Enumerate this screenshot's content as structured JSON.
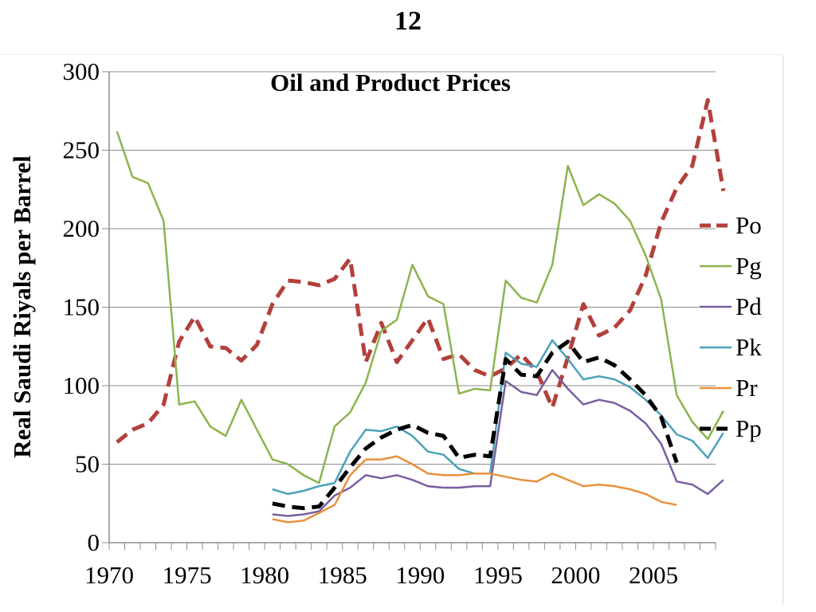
{
  "page": {
    "number": "12"
  },
  "chart_data": {
    "type": "line",
    "title": "Oil and Product Prices",
    "xlabel": "",
    "ylabel": "Real Saudi Riyals per Barrel",
    "xlim": [
      1970,
      2009
    ],
    "ylim": [
      0,
      300
    ],
    "x_ticks": [
      1970,
      1975,
      1980,
      1985,
      1990,
      1995,
      2000,
      2005
    ],
    "y_ticks": [
      0,
      50,
      100,
      150,
      200,
      250,
      300
    ],
    "grid": "horizontal",
    "legend_position": "right",
    "series": [
      {
        "name": "Po",
        "color": "#b3403b",
        "dash": "dashed",
        "width": 5,
        "points": [
          [
            1970.5,
            64
          ],
          [
            1971.5,
            72
          ],
          [
            1972.5,
            76
          ],
          [
            1973.5,
            88
          ],
          [
            1974.5,
            128
          ],
          [
            1975.5,
            144
          ],
          [
            1976.5,
            125
          ],
          [
            1977.5,
            124
          ],
          [
            1978.5,
            116
          ],
          [
            1979.5,
            126
          ],
          [
            1980.5,
            152
          ],
          [
            1981.5,
            167
          ],
          [
            1982.5,
            166
          ],
          [
            1983.5,
            164
          ],
          [
            1984.5,
            168
          ],
          [
            1985.5,
            181
          ],
          [
            1986.5,
            115
          ],
          [
            1987.5,
            140
          ],
          [
            1988.5,
            115
          ],
          [
            1989.5,
            129
          ],
          [
            1990.5,
            143
          ],
          [
            1991.5,
            117
          ],
          [
            1992.5,
            120
          ],
          [
            1993.5,
            110
          ],
          [
            1994.5,
            106
          ],
          [
            1995.5,
            111
          ],
          [
            1996.5,
            120
          ],
          [
            1997.5,
            109
          ],
          [
            1998.5,
            86
          ],
          [
            1999.5,
            118
          ],
          [
            2000.5,
            152
          ],
          [
            2001.5,
            132
          ],
          [
            2002.5,
            137
          ],
          [
            2003.5,
            148
          ],
          [
            2004.5,
            170
          ],
          [
            2005.5,
            204
          ],
          [
            2006.5,
            226
          ],
          [
            2007.5,
            240
          ],
          [
            2008.5,
            282
          ],
          [
            2009.5,
            224
          ]
        ]
      },
      {
        "name": "Pg",
        "color": "#8cb44f",
        "dash": "solid",
        "width": 2.5,
        "points": [
          [
            1970.5,
            262
          ],
          [
            1971.5,
            233
          ],
          [
            1972.5,
            229
          ],
          [
            1973.5,
            205
          ],
          [
            1974.5,
            88
          ],
          [
            1975.5,
            90
          ],
          [
            1976.5,
            74
          ],
          [
            1977.5,
            68
          ],
          [
            1978.5,
            91
          ],
          [
            1979.5,
            72
          ],
          [
            1980.5,
            53
          ],
          [
            1981.5,
            50
          ],
          [
            1982.5,
            43
          ],
          [
            1983.5,
            38
          ],
          [
            1984.5,
            74
          ],
          [
            1985.5,
            83
          ],
          [
            1986.5,
            102
          ],
          [
            1987.5,
            135
          ],
          [
            1988.5,
            142
          ],
          [
            1989.5,
            177
          ],
          [
            1990.5,
            157
          ],
          [
            1991.5,
            152
          ],
          [
            1992.5,
            95
          ],
          [
            1993.5,
            98
          ],
          [
            1994.5,
            97
          ],
          [
            1995.5,
            167
          ],
          [
            1996.5,
            156
          ],
          [
            1997.5,
            153
          ],
          [
            1998.5,
            177
          ],
          [
            1999.5,
            240
          ],
          [
            2000.5,
            215
          ],
          [
            2001.5,
            222
          ],
          [
            2002.5,
            216
          ],
          [
            2003.5,
            205
          ],
          [
            2004.5,
            183
          ],
          [
            2005.5,
            155
          ],
          [
            2006.5,
            94
          ],
          [
            2007.5,
            77
          ],
          [
            2008.5,
            66
          ],
          [
            2009.5,
            84
          ]
        ]
      },
      {
        "name": "Pd",
        "color": "#7a5ea0",
        "dash": "solid",
        "width": 2.5,
        "points": [
          [
            1980.5,
            18
          ],
          [
            1981.5,
            17
          ],
          [
            1982.5,
            18
          ],
          [
            1983.5,
            20
          ],
          [
            1984.5,
            30
          ],
          [
            1985.5,
            35
          ],
          [
            1986.5,
            43
          ],
          [
            1987.5,
            41
          ],
          [
            1988.5,
            43
          ],
          [
            1989.5,
            40
          ],
          [
            1990.5,
            36
          ],
          [
            1991.5,
            35
          ],
          [
            1992.5,
            35
          ],
          [
            1993.5,
            36
          ],
          [
            1994.5,
            36
          ],
          [
            1995.5,
            103
          ],
          [
            1996.5,
            96
          ],
          [
            1997.5,
            94
          ],
          [
            1998.5,
            110
          ],
          [
            1999.5,
            98
          ],
          [
            2000.5,
            88
          ],
          [
            2001.5,
            91
          ],
          [
            2002.5,
            89
          ],
          [
            2003.5,
            84
          ],
          [
            2004.5,
            76
          ],
          [
            2005.5,
            63
          ],
          [
            2006.5,
            39
          ],
          [
            2007.5,
            37
          ],
          [
            2008.5,
            31
          ],
          [
            2009.5,
            40
          ]
        ]
      },
      {
        "name": "Pk",
        "color": "#4aa2b9",
        "dash": "solid",
        "width": 2.5,
        "points": [
          [
            1980.5,
            34
          ],
          [
            1981.5,
            31
          ],
          [
            1982.5,
            33
          ],
          [
            1983.5,
            36
          ],
          [
            1984.5,
            38
          ],
          [
            1985.5,
            58
          ],
          [
            1986.5,
            72
          ],
          [
            1987.5,
            71
          ],
          [
            1988.5,
            74
          ],
          [
            1989.5,
            68
          ],
          [
            1990.5,
            58
          ],
          [
            1991.5,
            56
          ],
          [
            1992.5,
            47
          ],
          [
            1993.5,
            44
          ],
          [
            1994.5,
            44
          ],
          [
            1995.5,
            121
          ],
          [
            1996.5,
            114
          ],
          [
            1997.5,
            112
          ],
          [
            1998.5,
            129
          ],
          [
            1999.5,
            117
          ],
          [
            2000.5,
            104
          ],
          [
            2001.5,
            106
          ],
          [
            2002.5,
            104
          ],
          [
            2003.5,
            99
          ],
          [
            2004.5,
            91
          ],
          [
            2005.5,
            81
          ],
          [
            2006.5,
            69
          ],
          [
            2007.5,
            65
          ],
          [
            2008.5,
            54
          ],
          [
            2009.5,
            70
          ]
        ]
      },
      {
        "name": "Pr",
        "color": "#e8903e",
        "dash": "solid",
        "width": 2.5,
        "points": [
          [
            1980.5,
            15
          ],
          [
            1981.5,
            13
          ],
          [
            1982.5,
            14
          ],
          [
            1983.5,
            19
          ],
          [
            1984.5,
            24
          ],
          [
            1985.5,
            43
          ],
          [
            1986.5,
            53
          ],
          [
            1987.5,
            53
          ],
          [
            1988.5,
            55
          ],
          [
            1989.5,
            50
          ],
          [
            1990.5,
            44
          ],
          [
            1991.5,
            43
          ],
          [
            1992.5,
            43
          ],
          [
            1993.5,
            44
          ],
          [
            1994.5,
            44
          ],
          [
            1995.5,
            42
          ],
          [
            1996.5,
            40
          ],
          [
            1997.5,
            39
          ],
          [
            1998.5,
            44
          ],
          [
            1999.5,
            40
          ],
          [
            2000.5,
            36
          ],
          [
            2001.5,
            37
          ],
          [
            2002.5,
            36
          ],
          [
            2003.5,
            34
          ],
          [
            2004.5,
            31
          ],
          [
            2005.5,
            26
          ],
          [
            2006.5,
            24
          ]
        ]
      },
      {
        "name": "Pp",
        "color": "#000000",
        "dash": "dashed",
        "width": 5,
        "points": [
          [
            1980.5,
            25
          ],
          [
            1981.5,
            23
          ],
          [
            1982.5,
            22
          ],
          [
            1983.5,
            23
          ],
          [
            1984.5,
            35
          ],
          [
            1985.5,
            48
          ],
          [
            1986.5,
            60
          ],
          [
            1987.5,
            67
          ],
          [
            1988.5,
            72
          ],
          [
            1989.5,
            75
          ],
          [
            1990.5,
            70
          ],
          [
            1991.5,
            68
          ],
          [
            1992.5,
            54
          ],
          [
            1993.5,
            56
          ],
          [
            1994.5,
            55
          ],
          [
            1995.5,
            117
          ],
          [
            1996.5,
            107
          ],
          [
            1997.5,
            106
          ],
          [
            1998.5,
            121
          ],
          [
            1999.5,
            128
          ],
          [
            2000.5,
            115
          ],
          [
            2001.5,
            118
          ],
          [
            2002.5,
            113
          ],
          [
            2003.5,
            104
          ],
          [
            2004.5,
            94
          ],
          [
            2005.5,
            80
          ],
          [
            2006.5,
            51
          ]
        ]
      }
    ]
  }
}
